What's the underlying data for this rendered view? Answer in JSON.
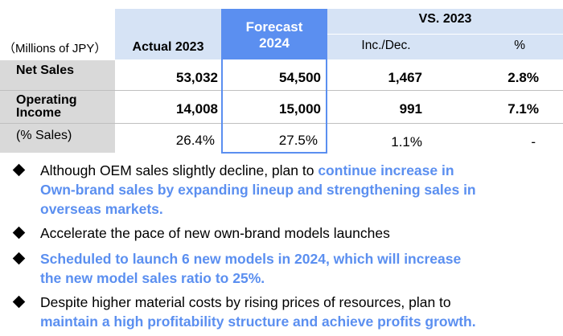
{
  "table": {
    "units_label": "（Millions of JPY）",
    "col_actual": "Actual 2023",
    "col_forecast_line1": "Forecast",
    "col_forecast_line2": "2024",
    "col_vs": "VS. 2023",
    "col_incdec": "Inc./Dec.",
    "col_pct": "%",
    "rows": [
      {
        "label": "Net Sales",
        "actual": "53,032",
        "forecast": "54,500",
        "incdec": "1,467",
        "pct": "2.8%"
      },
      {
        "label_line1": "Operating",
        "label_line2": "Income",
        "actual": "14,008",
        "forecast": "15,000",
        "incdec": "991",
        "pct": "7.1%"
      },
      {
        "label": "(% Sales)",
        "actual": "26.4%",
        "forecast": "27.5%",
        "incdec": "1.1%",
        "pct": "-"
      }
    ]
  },
  "bullets": [
    {
      "plain": "Although OEM sales slightly decline, plan to ",
      "highlight_a": "continue increase in",
      "highlight_b": "Own-brand sales by expanding lineup and strengthening sales in",
      "highlight_c": "overseas markets."
    },
    {
      "plain": "Accelerate the pace of new own-brand models launches"
    },
    {
      "highlight_a": "Scheduled to launch 6 new models in 2024, which will increase",
      "highlight_b": "the new model sales ratio to 25%."
    },
    {
      "plain_a": "Despite higher material costs by rising prices of resources, plan to",
      "highlight": "maintain a high profitability structure and achieve profits growth."
    }
  ],
  "colors": {
    "accent": "#5b8ff0",
    "header_bg": "#d6e3f5",
    "label_bg": "#d9d9d9"
  }
}
